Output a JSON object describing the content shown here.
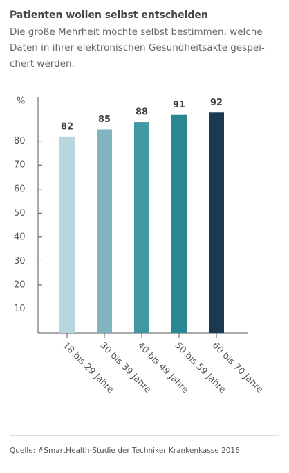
{
  "chart_data": {
    "type": "bar",
    "title": "Patienten wollen selbst entscheiden",
    "subtitle": [
      "Die große Mehrheit möchte selbst bestimmen, welche",
      "Daten in ihrer elektronischen Gesundheitsakte gespei-",
      "chert werden."
    ],
    "y_label": "%",
    "categories": [
      "18 bis 29 Jahre",
      "30 bis 39 Jahre",
      "40 bis 49 Jahre",
      "50 bis 59 Jahre",
      "60 bis 70 Jahre"
    ],
    "values": [
      82,
      85,
      88,
      91,
      92
    ],
    "colors": [
      "#b9d5dd",
      "#80b5c0",
      "#3f98a4",
      "#2b8691",
      "#1b3a52"
    ],
    "ylim": [
      0,
      97
    ],
    "yticks": [
      10,
      20,
      30,
      40,
      50,
      60,
      70,
      80
    ],
    "grid": false,
    "source": "Quelle: #SmartHealth-Studie der Techniker Krankenkasse 2016"
  }
}
